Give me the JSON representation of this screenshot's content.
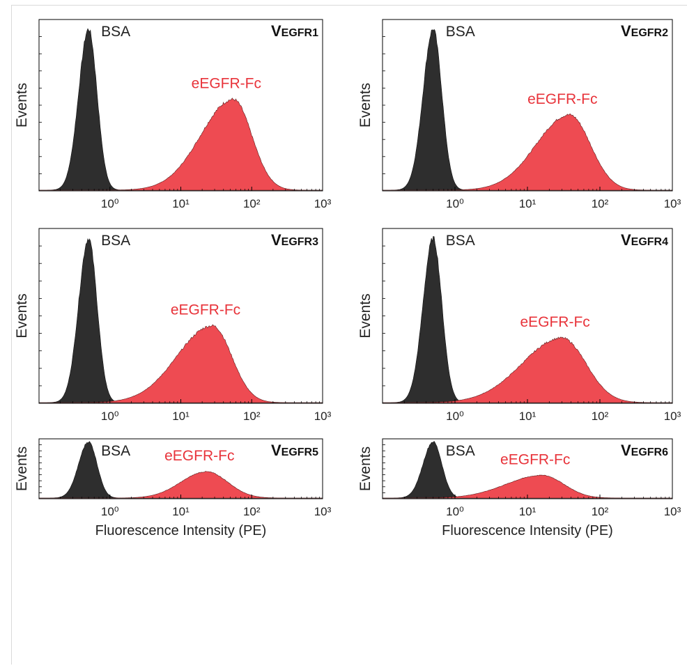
{
  "figure": {
    "xlabel": "Fluorescence Intensity (PE)",
    "ylabel": "Events",
    "tick_labels": [
      "10⁰",
      "10¹",
      "10²",
      "10³"
    ],
    "colors": {
      "bsa": "#2e2e2e",
      "fc": "#e8333a",
      "fc_fill": "#ee4b52",
      "axis": "#000000"
    }
  },
  "chart_data": [
    {
      "type": "area",
      "title": "VEGFR1",
      "x_scale": "log",
      "xlim": [
        0.1,
        1000
      ],
      "grid": false,
      "series": [
        {
          "name": "BSA",
          "peak_x": 0.5,
          "log_sigma_left": 0.14,
          "log_sigma_right": 0.12,
          "peak_height": 0.94
        },
        {
          "name": "eEGFR-Fc",
          "peak_x": 55,
          "log_sigma_left": 0.46,
          "log_sigma_right": 0.26,
          "peak_height": 0.53
        }
      ]
    },
    {
      "type": "area",
      "title": "VEGFR2",
      "x_scale": "log",
      "xlim": [
        0.1,
        1000
      ],
      "grid": false,
      "series": [
        {
          "name": "BSA",
          "peak_x": 0.5,
          "log_sigma_left": 0.14,
          "log_sigma_right": 0.12,
          "peak_height": 0.94
        },
        {
          "name": "eEGFR-Fc",
          "peak_x": 38,
          "log_sigma_left": 0.46,
          "log_sigma_right": 0.29,
          "peak_height": 0.44
        }
      ]
    },
    {
      "type": "area",
      "title": "VEGFR3",
      "x_scale": "log",
      "xlim": [
        0.1,
        1000
      ],
      "grid": false,
      "series": [
        {
          "name": "BSA",
          "peak_x": 0.5,
          "log_sigma_left": 0.14,
          "log_sigma_right": 0.12,
          "peak_height": 0.94
        },
        {
          "name": "eEGFR-Fc",
          "peak_x": 28,
          "log_sigma_left": 0.5,
          "log_sigma_right": 0.27,
          "peak_height": 0.44
        }
      ]
    },
    {
      "type": "area",
      "title": "VEGFR4",
      "x_scale": "log",
      "xlim": [
        0.1,
        1000
      ],
      "grid": false,
      "series": [
        {
          "name": "BSA",
          "peak_x": 0.5,
          "log_sigma_left": 0.14,
          "log_sigma_right": 0.12,
          "peak_height": 0.94
        },
        {
          "name": "eEGFR-Fc",
          "peak_x": 30,
          "log_sigma_left": 0.55,
          "log_sigma_right": 0.33,
          "peak_height": 0.37
        }
      ]
    },
    {
      "type": "area",
      "title": "VEGFR5",
      "x_scale": "log",
      "xlim": [
        0.1,
        1000
      ],
      "grid": false,
      "series": [
        {
          "name": "BSA",
          "peak_x": 0.5,
          "log_sigma_left": 0.14,
          "log_sigma_right": 0.12,
          "peak_height": 0.94
        },
        {
          "name": "eEGFR-Fc",
          "peak_x": 23,
          "log_sigma_left": 0.36,
          "log_sigma_right": 0.3,
          "peak_height": 0.44
        }
      ]
    },
    {
      "type": "area",
      "title": "VEGFR6",
      "x_scale": "log",
      "xlim": [
        0.1,
        1000
      ],
      "grid": false,
      "series": [
        {
          "name": "BSA",
          "peak_x": 0.5,
          "log_sigma_left": 0.14,
          "log_sigma_right": 0.12,
          "peak_height": 0.94
        },
        {
          "name": "eEGFR-Fc",
          "peak_x": 16,
          "log_sigma_left": 0.5,
          "log_sigma_right": 0.3,
          "peak_height": 0.38
        }
      ]
    }
  ]
}
